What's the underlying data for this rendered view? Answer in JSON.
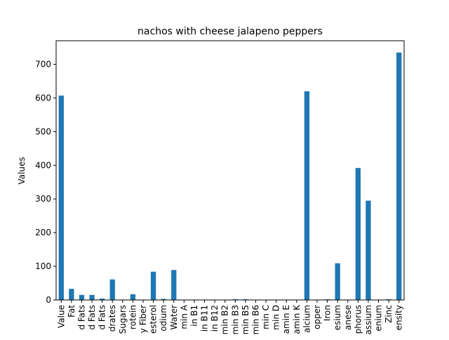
{
  "chart_data": {
    "type": "bar",
    "title": "nachos with cheese jalapeno peppers",
    "xlabel": "",
    "ylabel": "Values",
    "ylim": [
      0,
      770
    ],
    "yticks": [
      0,
      100,
      200,
      300,
      400,
      500,
      600,
      700
    ],
    "grid": false,
    "legend": "none",
    "bar_color": "#1f77b4",
    "categories": [
      "Value",
      "Fat",
      "d Fats",
      "d Fats",
      "d Fats",
      "drates",
      "Sugars",
      "rotein",
      "y Fiber",
      "esterol",
      "odium",
      "Water",
      "min A",
      "in B1",
      "in B11",
      "in B12",
      "min B2",
      "min B3",
      "min B5",
      "min B6",
      "min C",
      "min D",
      "amin E",
      "amin K",
      "alcium",
      "opper",
      "Iron",
      "esium",
      "anese",
      "phorus",
      "assium",
      "enium",
      "Zinc",
      "ensity"
    ],
    "values": [
      607,
      33,
      15,
      15,
      4,
      61,
      0,
      17,
      0,
      84,
      3,
      89,
      0,
      0,
      0,
      0,
      0,
      2,
      2,
      0,
      0,
      0,
      0,
      0,
      620,
      0,
      2,
      109,
      0,
      392,
      295,
      0,
      2,
      735
    ]
  }
}
